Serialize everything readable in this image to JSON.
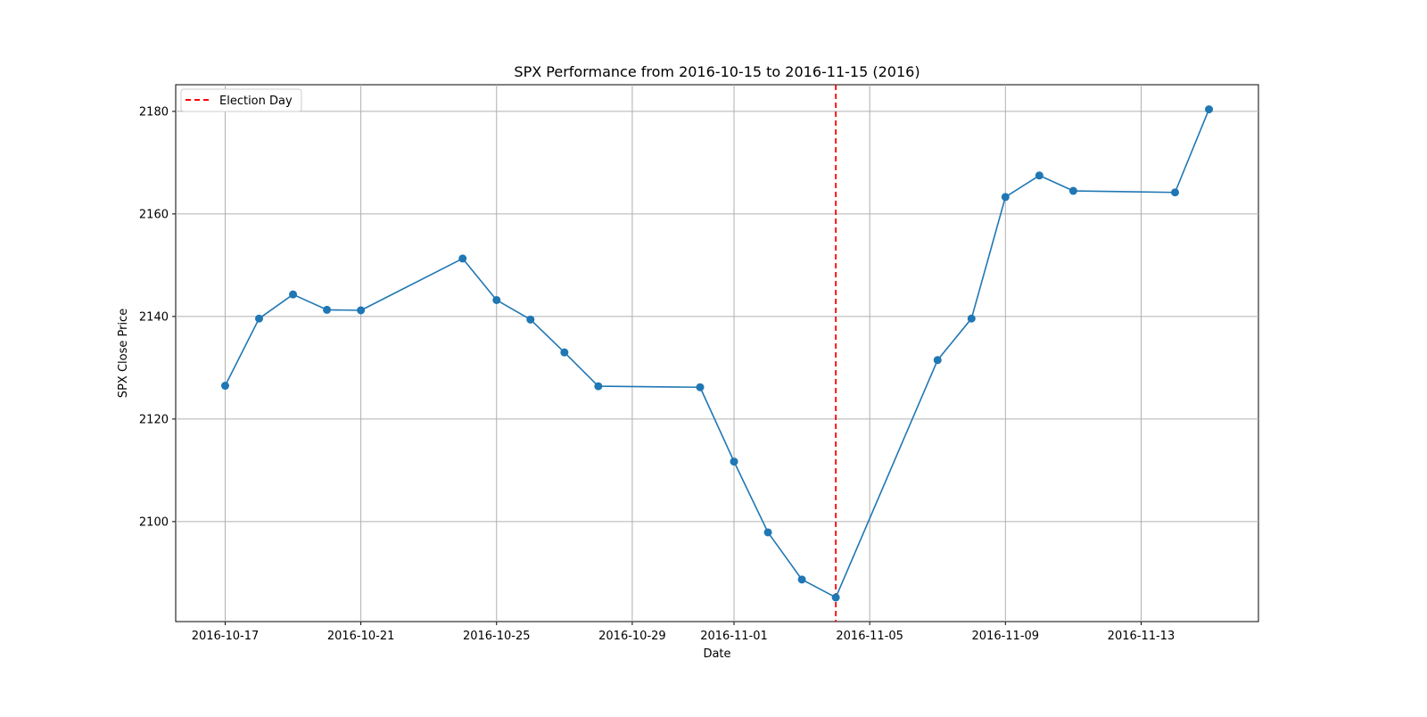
{
  "chart_data": {
    "type": "line",
    "title": "SPX Performance from 2016-10-15 to 2016-11-15 (2016)",
    "xlabel": "Date",
    "ylabel": "SPX Close Price",
    "xlim": [
      "2016-10-15 13:00",
      "2016-11-16 11:00"
    ],
    "ylim": [
      2080.5,
      2185.2
    ],
    "xticks": [
      "2016-10-17",
      "2016-10-21",
      "2016-10-25",
      "2016-10-29",
      "2016-11-01",
      "2016-11-05",
      "2016-11-09",
      "2016-11-13"
    ],
    "yticks": [
      2100,
      2120,
      2140,
      2160,
      2180
    ],
    "grid": true,
    "legend": {
      "position": "top-left",
      "entries": [
        "Election Day"
      ]
    },
    "series": [
      {
        "color": "#1f77b4",
        "marker": "circle",
        "points": [
          {
            "x": "2016-10-17",
            "y": 2126.5
          },
          {
            "x": "2016-10-18",
            "y": 2139.6
          },
          {
            "x": "2016-10-19",
            "y": 2144.3
          },
          {
            "x": "2016-10-20",
            "y": 2141.3
          },
          {
            "x": "2016-10-21",
            "y": 2141.2
          },
          {
            "x": "2016-10-24",
            "y": 2151.3
          },
          {
            "x": "2016-10-25",
            "y": 2143.2
          },
          {
            "x": "2016-10-26",
            "y": 2139.4
          },
          {
            "x": "2016-10-27",
            "y": 2133.0
          },
          {
            "x": "2016-10-28",
            "y": 2126.4
          },
          {
            "x": "2016-10-31",
            "y": 2126.2
          },
          {
            "x": "2016-11-01",
            "y": 2111.7
          },
          {
            "x": "2016-11-02",
            "y": 2097.9
          },
          {
            "x": "2016-11-03",
            "y": 2088.7
          },
          {
            "x": "2016-11-04",
            "y": 2085.2
          },
          {
            "x": "2016-11-07",
            "y": 2131.5
          },
          {
            "x": "2016-11-08",
            "y": 2139.6
          },
          {
            "x": "2016-11-09",
            "y": 2163.3
          },
          {
            "x": "2016-11-10",
            "y": 2167.5
          },
          {
            "x": "2016-11-11",
            "y": 2164.5
          },
          {
            "x": "2016-11-14",
            "y": 2164.2
          },
          {
            "x": "2016-11-15",
            "y": 2180.4
          }
        ]
      }
    ],
    "vlines": [
      {
        "label": "Election Day",
        "x": "2016-11-04",
        "color": "#ff0000",
        "style": "dashed"
      }
    ]
  }
}
